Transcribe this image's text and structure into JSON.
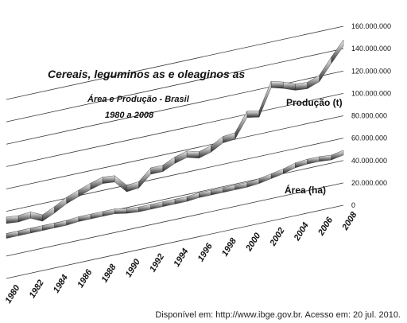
{
  "chart_data": {
    "type": "line",
    "title": "Cereais, leguminos as e oleaginos as",
    "subtitle_1": "Área e Produção - Brasil",
    "subtitle_2": "1980 a 2008",
    "categories": [
      "1980",
      "1982",
      "1984",
      "1986",
      "1988",
      "1990",
      "1992",
      "1994",
      "1996",
      "1998",
      "2000",
      "2002",
      "2004",
      "2006",
      "2008"
    ],
    "x": [
      1980,
      1981,
      1982,
      1983,
      1984,
      1985,
      1986,
      1987,
      1988,
      1989,
      1990,
      1991,
      1992,
      1993,
      1994,
      1995,
      1996,
      1997,
      1998,
      1999,
      2000,
      2001,
      2002,
      2003,
      2004,
      2005,
      2006,
      2007,
      2008
    ],
    "series": [
      {
        "name": "Produção (t)",
        "values": [
          52000000,
          51000000,
          52000000,
          47000000,
          52000000,
          58000000,
          62000000,
          66000000,
          69000000,
          68000000,
          57000000,
          58000000,
          68000000,
          68000000,
          73000000,
          76000000,
          73000000,
          76000000,
          82000000,
          83000000,
          100000000,
          98000000,
          122000000,
          119000000,
          115000000,
          114000000,
          118000000,
          132000000,
          145000000
        ]
      },
      {
        "name": "Área (ha)",
        "values": [
          38000000,
          38000000,
          38000000,
          38000000,
          38000000,
          38000000,
          39000000,
          39000000,
          39000000,
          39000000,
          37000000,
          36000000,
          36000000,
          36000000,
          36000000,
          36000000,
          37000000,
          37000000,
          37000000,
          37000000,
          37000000,
          38000000,
          40000000,
          42000000,
          45000000,
          46000000,
          46000000,
          45000000,
          47000000
        ]
      }
    ],
    "y_ticks": [
      "0",
      "20.000.000",
      "40.000.000",
      "60.000.000",
      "80.000.000",
      "100.000.000",
      "120.000.000",
      "140.000.000",
      "160.000.000"
    ],
    "ylim": [
      0,
      160000000
    ],
    "grid": true,
    "source": "Disponível em: http://www.ibge.gov.br. Acesso em: 20 jul. 2010."
  }
}
